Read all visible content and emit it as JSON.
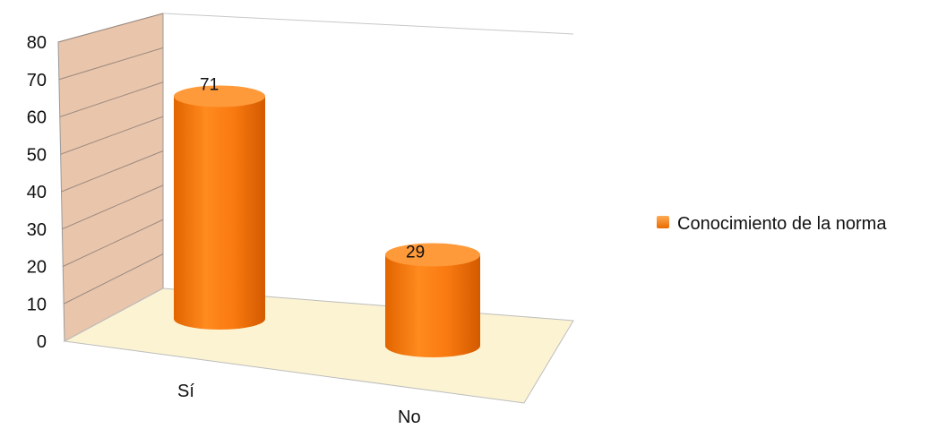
{
  "chart_data": {
    "type": "bar",
    "style": "3d-cylinder",
    "categories": [
      "Sí",
      "No"
    ],
    "series": [
      {
        "name": "Conocimiento de la norma",
        "values": [
          71,
          29
        ],
        "color": "#f47a12"
      }
    ],
    "data_labels": [
      "71",
      "29"
    ],
    "y_ticks": [
      "0",
      "10",
      "20",
      "30",
      "40",
      "50",
      "60",
      "70",
      "80"
    ],
    "ylim": [
      0,
      80
    ],
    "grid": true,
    "legend_position": "right",
    "colors": {
      "bar": "#f47a12",
      "bar_dark": "#c85000",
      "bar_light": "#ff9a3a",
      "back_wall": "#e9c5ac",
      "floor": "#fbf3d2"
    }
  }
}
